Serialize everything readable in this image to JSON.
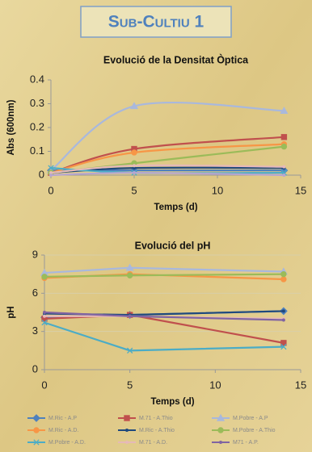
{
  "header": {
    "title": "Sub-Cultiu 1"
  },
  "chart_data": [
    {
      "type": "line",
      "smooth": true,
      "title": "Evolució de la Densitat Òptica",
      "x_label": "Temps (d)",
      "y_label": "Abs (600nm)",
      "x": [
        0,
        5,
        14
      ],
      "xlim": [
        0,
        15
      ],
      "xticks": [
        0,
        5,
        10,
        15
      ],
      "ylim": [
        0,
        0.4
      ],
      "yticks": [
        0,
        0.1,
        0.2,
        0.3,
        0.4
      ],
      "grid": false,
      "series": [
        {
          "color": "#4f81bd",
          "marker": "diamond",
          "values": [
            0.02,
            0.02,
            0.02
          ]
        },
        {
          "color": "#c0504d",
          "marker": "square",
          "values": [
            0.01,
            0.11,
            0.16
          ]
        },
        {
          "color": "#a9b8dc",
          "marker": "triangle",
          "values": [
            0.02,
            0.29,
            0.27
          ]
        },
        {
          "color": "#f79646",
          "marker": "circle",
          "values": [
            0.01,
            0.095,
            0.13
          ]
        },
        {
          "color": "#1f497d",
          "marker": "none",
          "values": [
            0.01,
            0.03,
            0.03
          ]
        },
        {
          "color": "#9bbb59",
          "marker": "circle",
          "values": [
            0.01,
            0.05,
            0.12
          ]
        },
        {
          "color": "#4bacc6",
          "marker": "x",
          "values": [
            0.03,
            0.01,
            0.01
          ]
        },
        {
          "color": "#e6b9b8",
          "marker": "none",
          "values": [
            0.01,
            0.04,
            0.035
          ]
        },
        {
          "color": "#b7a6cf",
          "marker": "none",
          "values": [
            0.0,
            0.01,
            0.0
          ]
        }
      ]
    },
    {
      "type": "line",
      "smooth": false,
      "title": "Evolució del pH",
      "x_label": "Temps (d)",
      "y_label": "pH",
      "x": [
        0,
        5,
        14
      ],
      "xlim": [
        0,
        15
      ],
      "xticks": [
        0,
        5,
        10,
        15
      ],
      "ylim": [
        0,
        9
      ],
      "yticks": [
        0,
        3,
        6,
        9
      ],
      "grid": true,
      "legend": "bottom",
      "series": [
        {
          "name": "M.Ric - A.P",
          "color": "#4f81bd",
          "marker": "diamond",
          "values": [
            4.1,
            4.3,
            4.6
          ]
        },
        {
          "name": "M.71 - A.Thio",
          "color": "#c0504d",
          "marker": "square",
          "values": [
            4.0,
            4.3,
            2.1
          ]
        },
        {
          "name": "M.Pobre - A.P",
          "color": "#a9b8dc",
          "marker": "triangle",
          "values": [
            7.6,
            8.0,
            7.7
          ]
        },
        {
          "name": "M.Ric - A.D.",
          "color": "#f79646",
          "marker": "circle",
          "values": [
            7.2,
            7.5,
            7.1
          ]
        },
        {
          "name": "M.Ric - A.Thio",
          "color": "#1f497d",
          "marker": "none",
          "values": [
            4.4,
            4.3,
            4.6
          ]
        },
        {
          "name": "M.Pobre - A.Thio",
          "color": "#9bbb59",
          "marker": "circle",
          "values": [
            7.3,
            7.4,
            7.5
          ]
        },
        {
          "name": "M.Pobre - A.D.",
          "color": "#4bacc6",
          "marker": "x",
          "values": [
            3.7,
            1.5,
            1.8
          ]
        },
        {
          "name": "M.71 - A.D.",
          "color": "#e6b9b8",
          "marker": "none",
          "values": [
            4.2,
            4.2,
            4.0
          ]
        },
        {
          "name": "M71 - A.P.",
          "color": "#8064a2",
          "marker": "none",
          "values": [
            4.5,
            4.2,
            3.9
          ]
        }
      ]
    }
  ]
}
